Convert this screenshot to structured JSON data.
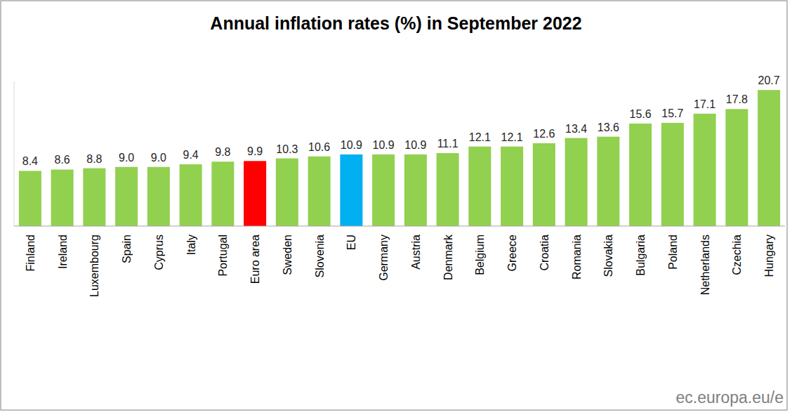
{
  "chart_data": {
    "type": "bar",
    "title": "Annual inflation rates (%) in September 2022",
    "categories": [
      "Finland",
      "Ireland",
      "Luxembourg",
      "Spain",
      "Cyprus",
      "Italy",
      "Portugal",
      "Euro area",
      "Sweden",
      "Slovenia",
      "EU",
      "Germany",
      "Austria",
      "Denmark",
      "Belgium",
      "Greece",
      "Croatia",
      "Romania",
      "Slovakia",
      "Bulgaria",
      "Poland",
      "Netherlands",
      "Czechia",
      "Hungary"
    ],
    "values": [
      8.4,
      8.6,
      8.8,
      9.0,
      9.0,
      9.4,
      9.8,
      9.9,
      10.3,
      10.6,
      10.9,
      10.9,
      10.9,
      11.1,
      12.1,
      12.1,
      12.6,
      13.4,
      13.6,
      15.6,
      15.7,
      17.1,
      17.8,
      20.7
    ],
    "value_labels": [
      "8.4",
      "8.6",
      "8.8",
      "9.0",
      "9.0",
      "9.4",
      "9.8",
      "9.9",
      "10.3",
      "10.6",
      "10.9",
      "10.9",
      "10.9",
      "11.1",
      "12.1",
      "12.1",
      "12.6",
      "13.4",
      "13.6",
      "15.6",
      "15.7",
      "17.1",
      "17.8",
      "20.7"
    ],
    "colors": [
      "#92d050",
      "#92d050",
      "#92d050",
      "#92d050",
      "#92d050",
      "#92d050",
      "#92d050",
      "#ff0000",
      "#92d050",
      "#92d050",
      "#00b0f0",
      "#92d050",
      "#92d050",
      "#92d050",
      "#92d050",
      "#92d050",
      "#92d050",
      "#92d050",
      "#92d050",
      "#92d050",
      "#92d050",
      "#92d050",
      "#92d050",
      "#92d050"
    ],
    "ylim": [
      0,
      22
    ],
    "data_labels": true,
    "tick_labels": "x",
    "grid": false,
    "source": "ec.europa.eu/e"
  }
}
